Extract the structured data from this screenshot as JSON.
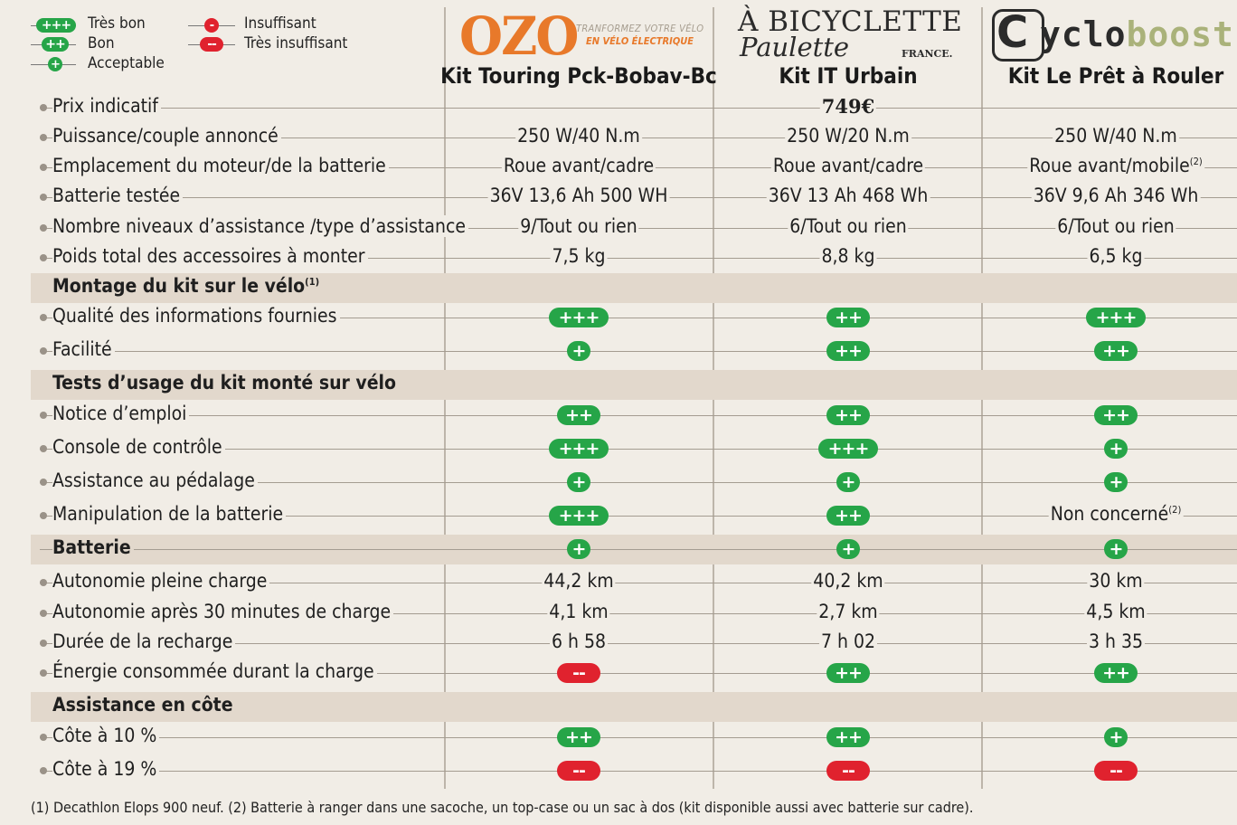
{
  "legend": {
    "tres_bon": "Très bon",
    "bon": "Bon",
    "acceptable": "Acceptable",
    "insuffisant": "Insuffisant",
    "tres_insuffisant": "Très insuffisant"
  },
  "colors": {
    "green": "#26a548",
    "red": "#e0222e",
    "ozo_orange": "#e8792a",
    "section_bg": "#e2d8cc"
  },
  "products": [
    {
      "brand_word": "OZO",
      "tagline_1": "TRANFORMEZ VOTRE VÉLO",
      "tagline_2": "EN VÉLO ÉLECTRIQUE",
      "name": "Kit Touring Pck-Bobav-Bc"
    },
    {
      "brand_line_1": "À BICYCLETTE",
      "brand_line_2": "Paulette",
      "brand_line_3": "FRANCE.",
      "name": "Kit IT Urbain"
    },
    {
      "brand_word_a": "yclo",
      "brand_word_b": "boost",
      "brand_icon": "C",
      "name": "Kit Le Prêt à Rouler"
    }
  ],
  "rows": {
    "prix": {
      "label": "Prix indicatif",
      "values": [
        "",
        "749€",
        ""
      ]
    },
    "puissance": {
      "label": "Puissance/couple annoncé",
      "values": [
        "250 W/40 N.m",
        "250 W/20 N.m",
        "250 W/40 N.m"
      ]
    },
    "emplacement": {
      "label": "Emplacement du moteur/de la batterie",
      "values": [
        "Roue avant/cadre",
        "Roue avant/cadre",
        "Roue avant/mobile"
      ],
      "note_c": "(2)"
    },
    "batterie_testee": {
      "label": "Batterie testée",
      "values": [
        "36V 13,6 Ah 500 WH",
        "36V 13 Ah 468 Wh",
        "36V 9,6 Ah 346 Wh"
      ]
    },
    "niveaux": {
      "label": "Nombre niveaux d’assistance /type d’assistance",
      "values": [
        "9/Tout ou rien",
        "6/Tout ou rien",
        "6/Tout ou rien"
      ]
    },
    "poids": {
      "label": "Poids total des accessoires à monter",
      "values": [
        "7,5 kg",
        "8,8 kg",
        "6,5 kg"
      ]
    },
    "sec_montage": {
      "label": "Montage du kit sur le vélo",
      "note": "(1)"
    },
    "qualite": {
      "label": "Qualité des informations fournies",
      "ratings": [
        "+++",
        "++",
        "+++"
      ]
    },
    "facilite": {
      "label": "Facilité",
      "ratings": [
        "+",
        "++",
        "++"
      ]
    },
    "sec_tests": {
      "label": "Tests d’usage du kit monté sur vélo"
    },
    "notice": {
      "label": "Notice d’emploi",
      "ratings": [
        "++",
        "++",
        "++"
      ]
    },
    "console": {
      "label": "Console de contrôle",
      "ratings": [
        "+++",
        "+++",
        "+"
      ]
    },
    "assistance_ped": {
      "label": "Assistance au pédalage",
      "ratings": [
        "+",
        "+",
        "+"
      ]
    },
    "manipulation": {
      "label": "Manipulation de la batterie",
      "ratings": [
        "+++",
        "++",
        ""
      ],
      "text_c": "Non concerné",
      "note_c": "(2)"
    },
    "sec_batterie": {
      "label": "Batterie",
      "ratings": [
        "+",
        "+",
        "+"
      ]
    },
    "autonomie": {
      "label": "Autonomie pleine charge",
      "values": [
        "44,2 km",
        "40,2 km",
        "30 km"
      ]
    },
    "autonomie30": {
      "label": "Autonomie après 30 minutes de charge",
      "values": [
        "4,1 km",
        "2,7 km",
        "4,5 km"
      ]
    },
    "duree": {
      "label": "Durée de la recharge",
      "values": [
        "6 h 58",
        "7 h 02",
        "3 h 35"
      ]
    },
    "energie": {
      "label": "Énergie consommée durant la charge",
      "ratings": [
        "--",
        "++",
        "++"
      ]
    },
    "sec_cote": {
      "label": "Assistance en côte"
    },
    "cote10": {
      "label": "Côte à 10 %",
      "ratings": [
        "++",
        "++",
        "+"
      ]
    },
    "cote19": {
      "label": "Côte à 19 %",
      "ratings": [
        "--",
        "--",
        "--"
      ]
    }
  },
  "footnote": "(1) Decathlon Elops 900 neuf. (2) Batterie à ranger dans une sacoche, un top-case ou un sac à dos (kit disponible aussi avec batterie sur cadre)."
}
